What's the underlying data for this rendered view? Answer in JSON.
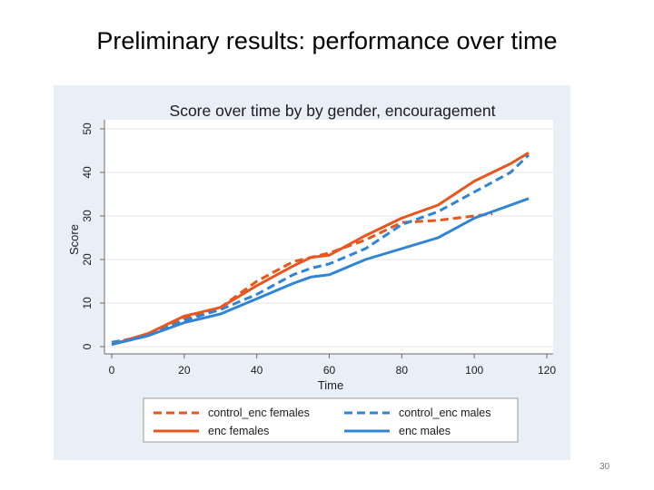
{
  "slide": {
    "title": "Preliminary results: performance over time",
    "page_number": "30"
  },
  "chart_data": {
    "type": "line",
    "title": "Score over time by by gender, encouragement",
    "xlabel": "Time",
    "ylabel": "Score",
    "xlim": [
      0,
      120
    ],
    "ylim": [
      0,
      50
    ],
    "xticks": [
      0,
      20,
      40,
      60,
      80,
      100,
      120
    ],
    "yticks": [
      0,
      10,
      20,
      30,
      40,
      50
    ],
    "grid": true,
    "legend_position": "bottom",
    "series": [
      {
        "name": "control_enc females",
        "color": "#e8561f",
        "style": "dashed",
        "x": [
          0,
          10,
          20,
          30,
          35,
          40,
          50,
          60,
          70,
          80,
          90,
          100,
          105
        ],
        "y": [
          0.5,
          2.5,
          6.5,
          9,
          12,
          15,
          19.5,
          21.5,
          24.5,
          28.5,
          29,
          30,
          30.5
        ]
      },
      {
        "name": "control_enc males",
        "color": "#2f84d6",
        "style": "dashed",
        "x": [
          0,
          10,
          20,
          30,
          40,
          50,
          55,
          60,
          70,
          80,
          90,
          100,
          110,
          115
        ],
        "y": [
          1,
          2.5,
          6,
          8.5,
          12,
          16.5,
          18,
          19,
          22.5,
          28,
          31,
          35.5,
          40,
          44
        ]
      },
      {
        "name": "enc females",
        "color": "#e8561f",
        "style": "solid",
        "x": [
          0,
          10,
          20,
          30,
          40,
          50,
          55,
          60,
          70,
          80,
          90,
          100,
          110,
          115
        ],
        "y": [
          0.5,
          3,
          7,
          9,
          14,
          18.5,
          20.5,
          21,
          25.5,
          29.5,
          32.5,
          38,
          42,
          44.5
        ]
      },
      {
        "name": "enc males",
        "color": "#2f84d6",
        "style": "solid",
        "x": [
          0,
          10,
          20,
          30,
          40,
          50,
          55,
          60,
          70,
          80,
          90,
          100,
          110,
          115
        ],
        "y": [
          0.5,
          2.5,
          5.5,
          7.5,
          11,
          14.5,
          16,
          16.5,
          20,
          22.5,
          25,
          29.5,
          32.5,
          34
        ]
      }
    ]
  }
}
